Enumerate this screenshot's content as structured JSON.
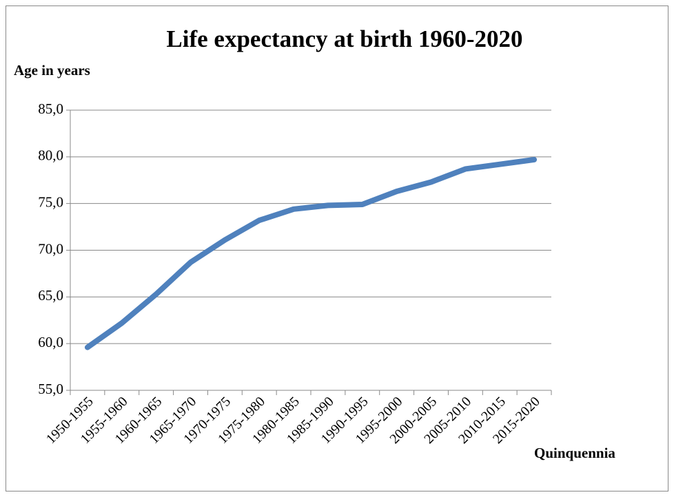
{
  "chart_data": {
    "type": "line",
    "title": "Life expectancy at birth 1960-2020",
    "y_label": "Age in years",
    "x_label": "Quinquennia",
    "categories": [
      "1950-1955",
      "1955-1960",
      "1960-1965",
      "1965-1970",
      "1970-1975",
      "1975-1980",
      "1980-1985",
      "1985-1990",
      "1990-1995",
      "1995-2000",
      "2000-2005",
      "2005-2010",
      "2010-2015",
      "2015-2020"
    ],
    "values": [
      59.6,
      62.2,
      65.3,
      68.7,
      71.1,
      73.2,
      74.4,
      74.8,
      74.9,
      76.3,
      77.3,
      78.7,
      79.2,
      79.7
    ],
    "color": "#4f81bd",
    "ylim": [
      55,
      85
    ],
    "yticks": [
      {
        "value": 55,
        "label": "55,0"
      },
      {
        "value": 60,
        "label": "60,0"
      },
      {
        "value": 65,
        "label": "65,0"
      },
      {
        "value": 70,
        "label": "70,0"
      },
      {
        "value": 75,
        "label": "75,0"
      },
      {
        "value": 80,
        "label": "80,0"
      },
      {
        "value": 85,
        "label": "85,0"
      }
    ],
    "grid": true
  }
}
